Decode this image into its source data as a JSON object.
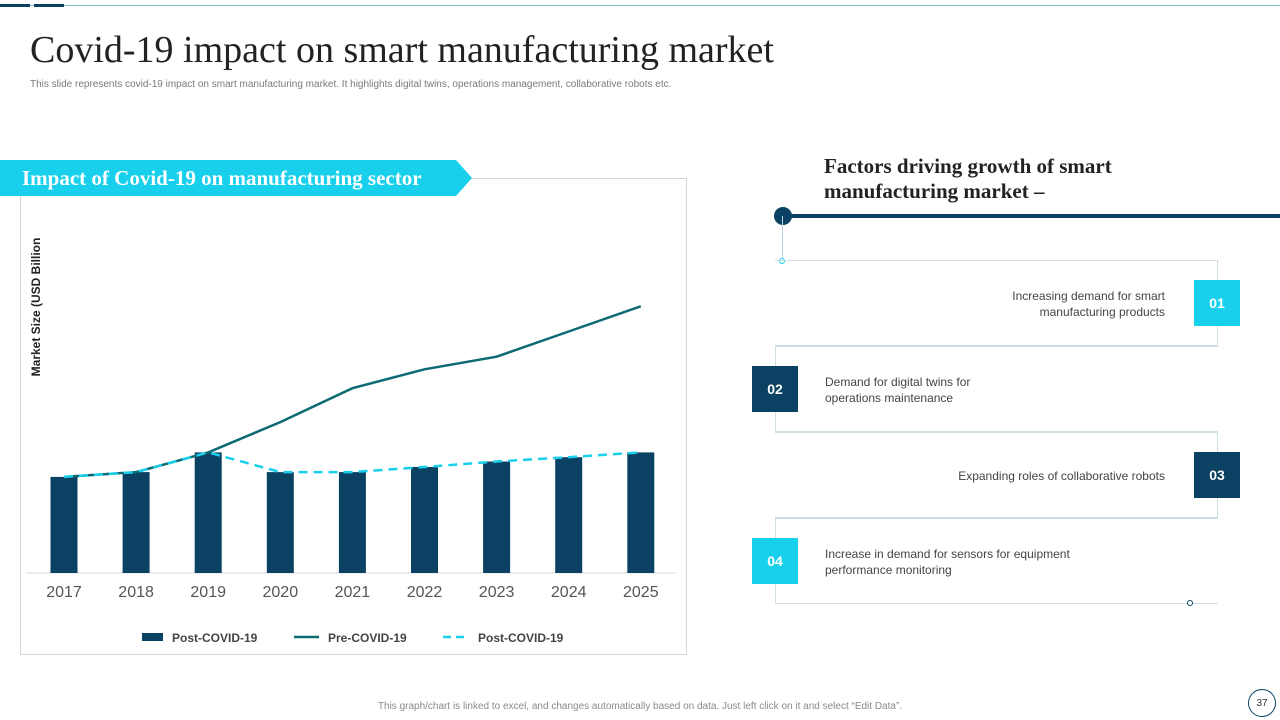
{
  "header": {
    "title": "Covid-19 impact on smart manufacturing market",
    "subtitle": "This slide represents covid-19 impact on smart manufacturing market. It highlights digital twins, operations management,  collaborative robots etc."
  },
  "left_section": {
    "banner": "Impact of Covid-19 on manufacturing sector"
  },
  "chart_data": {
    "type": "bar",
    "title": "",
    "xlabel": "",
    "ylabel": "Market Size (USD Billion",
    "ylim": [
      0,
      100
    ],
    "grid": false,
    "legend_position": "bottom",
    "categories": [
      "2017",
      "2018",
      "2019",
      "2020",
      "2021",
      "2022",
      "2023",
      "2024",
      "2025"
    ],
    "series": [
      {
        "name": "Post-COVID-19",
        "kind": "bar",
        "color": "#0b4263",
        "values": [
          24.4,
          25.6,
          30.6,
          25.6,
          25.6,
          26.9,
          28.3,
          29.4,
          30.6
        ]
      },
      {
        "name": "Pre-COVID-19",
        "kind": "line",
        "color": "#0d6a73",
        "values": [
          24.4,
          25.6,
          30.6,
          38.3,
          46.9,
          51.7,
          54.9,
          61.3,
          67.7
        ]
      },
      {
        "name": "Post-COVID-19",
        "kind": "dashed-line",
        "color": "#18d0ec",
        "values": [
          24.4,
          25.6,
          30.6,
          25.6,
          25.6,
          26.9,
          28.3,
          29.4,
          30.6
        ]
      }
    ]
  },
  "right_section": {
    "heading": "Factors driving growth of smart manufacturing market –",
    "factors": [
      {
        "number": "01",
        "text": "Increasing demand for smart manufacturing products"
      },
      {
        "number": "02",
        "text": "Demand for digital twins for operations maintenance"
      },
      {
        "number": "03",
        "text": "Expanding roles of collaborative  robots"
      },
      {
        "number": "04",
        "text": "Increase in demand for sensors for equipment performance  monitoring"
      }
    ]
  },
  "footer": {
    "note": "This graph/chart is linked to excel, and changes automatically based on data. Just left click on it and select “Edit Data”.",
    "page_number": "37"
  },
  "colors": {
    "navy": "#0b4263",
    "cyan": "#18d0ec",
    "teal": "#0d6a73"
  }
}
